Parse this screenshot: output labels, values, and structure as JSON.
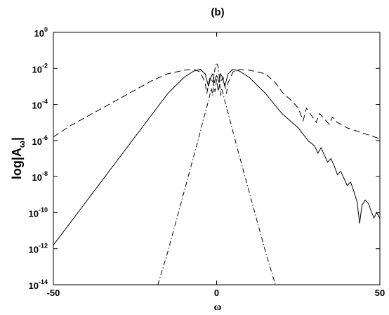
{
  "chart_data": {
    "type": "line",
    "title": "(b)",
    "xlabel": "ω",
    "ylabel": {
      "main": "log|A",
      "subscript": "ω",
      "close": "|"
    },
    "xlim": [
      -50,
      50
    ],
    "ylim": [
      -14,
      0
    ],
    "yscale": "log",
    "x_ticks": [
      "-50",
      "0",
      "50"
    ],
    "y_ticks": [
      {
        "base": "10",
        "exp": "0"
      },
      {
        "base": "10",
        "exp": "-2"
      },
      {
        "base": "10",
        "exp": "-4"
      },
      {
        "base": "10",
        "exp": "-6"
      },
      {
        "base": "10",
        "exp": "-8"
      },
      {
        "base": "10",
        "exp": "-10"
      },
      {
        "base": "10",
        "exp": "-12"
      },
      {
        "base": "10",
        "exp": "-14"
      }
    ],
    "grid": false,
    "legend": "none",
    "series": [
      {
        "style": "dashed",
        "points": [
          [
            -50,
            -5.8
          ],
          [
            -45,
            -5.2
          ],
          [
            -40,
            -4.7
          ],
          [
            -35,
            -4.2
          ],
          [
            -30,
            -3.7
          ],
          [
            -25,
            -3.2
          ],
          [
            -20,
            -2.7
          ],
          [
            -15,
            -2.3
          ],
          [
            -10,
            -2.1
          ],
          [
            -7,
            -2.05
          ],
          [
            -5,
            -2.2
          ],
          [
            -3.5,
            -2.8
          ],
          [
            -3,
            -3.4
          ],
          [
            -2.5,
            -2.9
          ],
          [
            -2,
            -2.5
          ],
          [
            -1,
            -2.8
          ],
          [
            -0.5,
            -3.3
          ],
          [
            0,
            -2.6
          ],
          [
            0.5,
            -3.3
          ],
          [
            1,
            -2.8
          ],
          [
            2,
            -2.5
          ],
          [
            2.5,
            -2.9
          ],
          [
            3,
            -3.4
          ],
          [
            3.5,
            -2.8
          ],
          [
            5,
            -2.2
          ],
          [
            7,
            -2.05
          ],
          [
            10,
            -2.1
          ],
          [
            15,
            -2.3
          ],
          [
            18,
            -2.8
          ],
          [
            20,
            -3.3
          ],
          [
            23,
            -3.8
          ],
          [
            25,
            -4.2
          ],
          [
            26.5,
            -4.9
          ],
          [
            27.5,
            -4.2
          ],
          [
            29,
            -4.6
          ],
          [
            30.5,
            -5.0
          ],
          [
            31.5,
            -4.5
          ],
          [
            33,
            -4.8
          ],
          [
            34.5,
            -5.1
          ],
          [
            35.5,
            -4.7
          ],
          [
            37,
            -5.0
          ],
          [
            40,
            -5.3
          ],
          [
            45,
            -5.6
          ],
          [
            50,
            -5.9
          ]
        ]
      },
      {
        "style": "solid",
        "points": [
          [
            -50,
            -11.8
          ],
          [
            -45,
            -10.6
          ],
          [
            -40,
            -9.4
          ],
          [
            -35,
            -8.2
          ],
          [
            -30,
            -7.0
          ],
          [
            -25,
            -5.8
          ],
          [
            -20,
            -4.6
          ],
          [
            -15,
            -3.4
          ],
          [
            -10,
            -2.5
          ],
          [
            -7,
            -2.15
          ],
          [
            -5,
            -2.05
          ],
          [
            -3.5,
            -2.3
          ],
          [
            -2.5,
            -3.0
          ],
          [
            -1.8,
            -2.5
          ],
          [
            -1.2,
            -2.3
          ],
          [
            -0.7,
            -2.8
          ],
          [
            -0.3,
            -2.5
          ],
          [
            0,
            -2.4
          ],
          [
            0.3,
            -2.5
          ],
          [
            0.7,
            -2.8
          ],
          [
            1.2,
            -2.3
          ],
          [
            1.8,
            -2.5
          ],
          [
            2.5,
            -3.0
          ],
          [
            3.5,
            -2.3
          ],
          [
            5,
            -2.05
          ],
          [
            7,
            -2.15
          ],
          [
            10,
            -2.5
          ],
          [
            15,
            -3.4
          ],
          [
            20,
            -4.5
          ],
          [
            25,
            -5.3
          ],
          [
            28,
            -6.0
          ],
          [
            30,
            -6.3
          ],
          [
            31,
            -6.7
          ],
          [
            32,
            -6.4
          ],
          [
            33,
            -6.8
          ],
          [
            34,
            -7.2
          ],
          [
            35,
            -7.0
          ],
          [
            36,
            -7.4
          ],
          [
            37,
            -7.9
          ],
          [
            38,
            -7.7
          ],
          [
            39,
            -8.1
          ],
          [
            40,
            -8.5
          ],
          [
            41,
            -8.3
          ],
          [
            42,
            -8.8
          ],
          [
            43,
            -9.4
          ],
          [
            43.8,
            -10.6
          ],
          [
            44.5,
            -9.6
          ],
          [
            45.5,
            -9.3
          ],
          [
            46.5,
            -9.5
          ],
          [
            47.5,
            -10.0
          ],
          [
            48.2,
            -10.3
          ],
          [
            49,
            -10.0
          ],
          [
            50,
            -10.3
          ]
        ]
      },
      {
        "style": "dashdot",
        "points": [
          [
            -18,
            -14
          ],
          [
            -15,
            -12.2
          ],
          [
            -12,
            -10.2
          ],
          [
            -9,
            -8.2
          ],
          [
            -6,
            -6.2
          ],
          [
            -4,
            -4.8
          ],
          [
            -2.5,
            -3.8
          ],
          [
            -1.6,
            -3.1
          ],
          [
            -1.2,
            -3.5
          ],
          [
            -0.8,
            -2.4
          ],
          [
            -0.4,
            -1.9
          ],
          [
            0,
            -1.7
          ],
          [
            0.4,
            -1.9
          ],
          [
            0.8,
            -2.4
          ],
          [
            1.2,
            -3.5
          ],
          [
            1.6,
            -3.1
          ],
          [
            2.5,
            -3.8
          ],
          [
            4,
            -4.8
          ],
          [
            6,
            -6.2
          ],
          [
            9,
            -8.2
          ],
          [
            12,
            -10.2
          ],
          [
            15,
            -12.2
          ],
          [
            18,
            -14
          ]
        ]
      }
    ]
  }
}
